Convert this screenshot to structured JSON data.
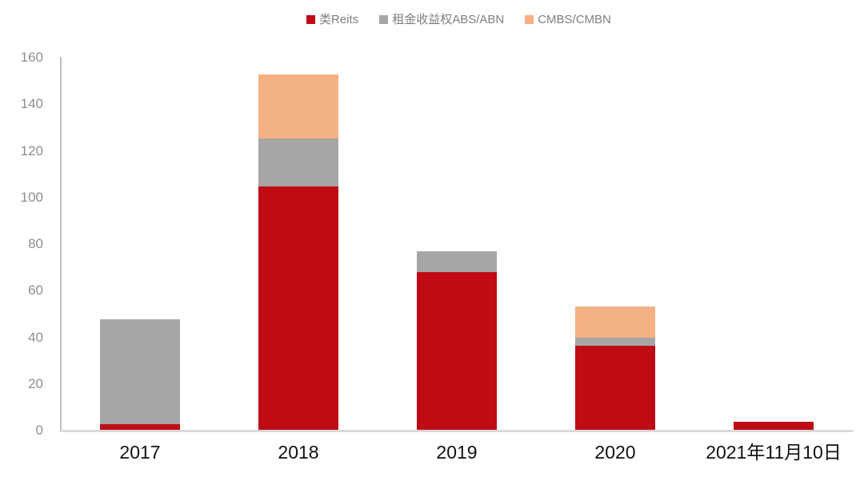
{
  "chart_data": {
    "type": "bar",
    "stacked": true,
    "title": "",
    "xlabel": "",
    "ylabel": "",
    "categories": [
      "2017",
      "2018",
      "2019",
      "2020",
      "2021年11月10日"
    ],
    "series": [
      {
        "name": "类Reits",
        "color": "#C00B15",
        "values": [
          2.5,
          104.5,
          67.5,
          36.0,
          3.5
        ]
      },
      {
        "name": "租金收益权ABS/ABN",
        "color": "#A6A6A6",
        "values": [
          45.0,
          20.5,
          9.0,
          3.5,
          0
        ]
      },
      {
        "name": "CMBS/CMBN",
        "color": "#F4B183",
        "values": [
          0,
          27.5,
          0,
          13.5,
          0
        ]
      }
    ],
    "ylim": [
      0,
      160
    ],
    "y_ticks": [
      0,
      20,
      40,
      60,
      80,
      100,
      120,
      140,
      160
    ],
    "grid": false,
    "legend_position": "top"
  },
  "colors": {
    "y_axis_line": "#BFBFBF",
    "x_axis_line": "#D9D9D9",
    "tick_label_text": "#8E8E8E",
    "legend_text": "#7F7F7F",
    "x_label_text": "#111111",
    "background": "#FFFFFF"
  }
}
